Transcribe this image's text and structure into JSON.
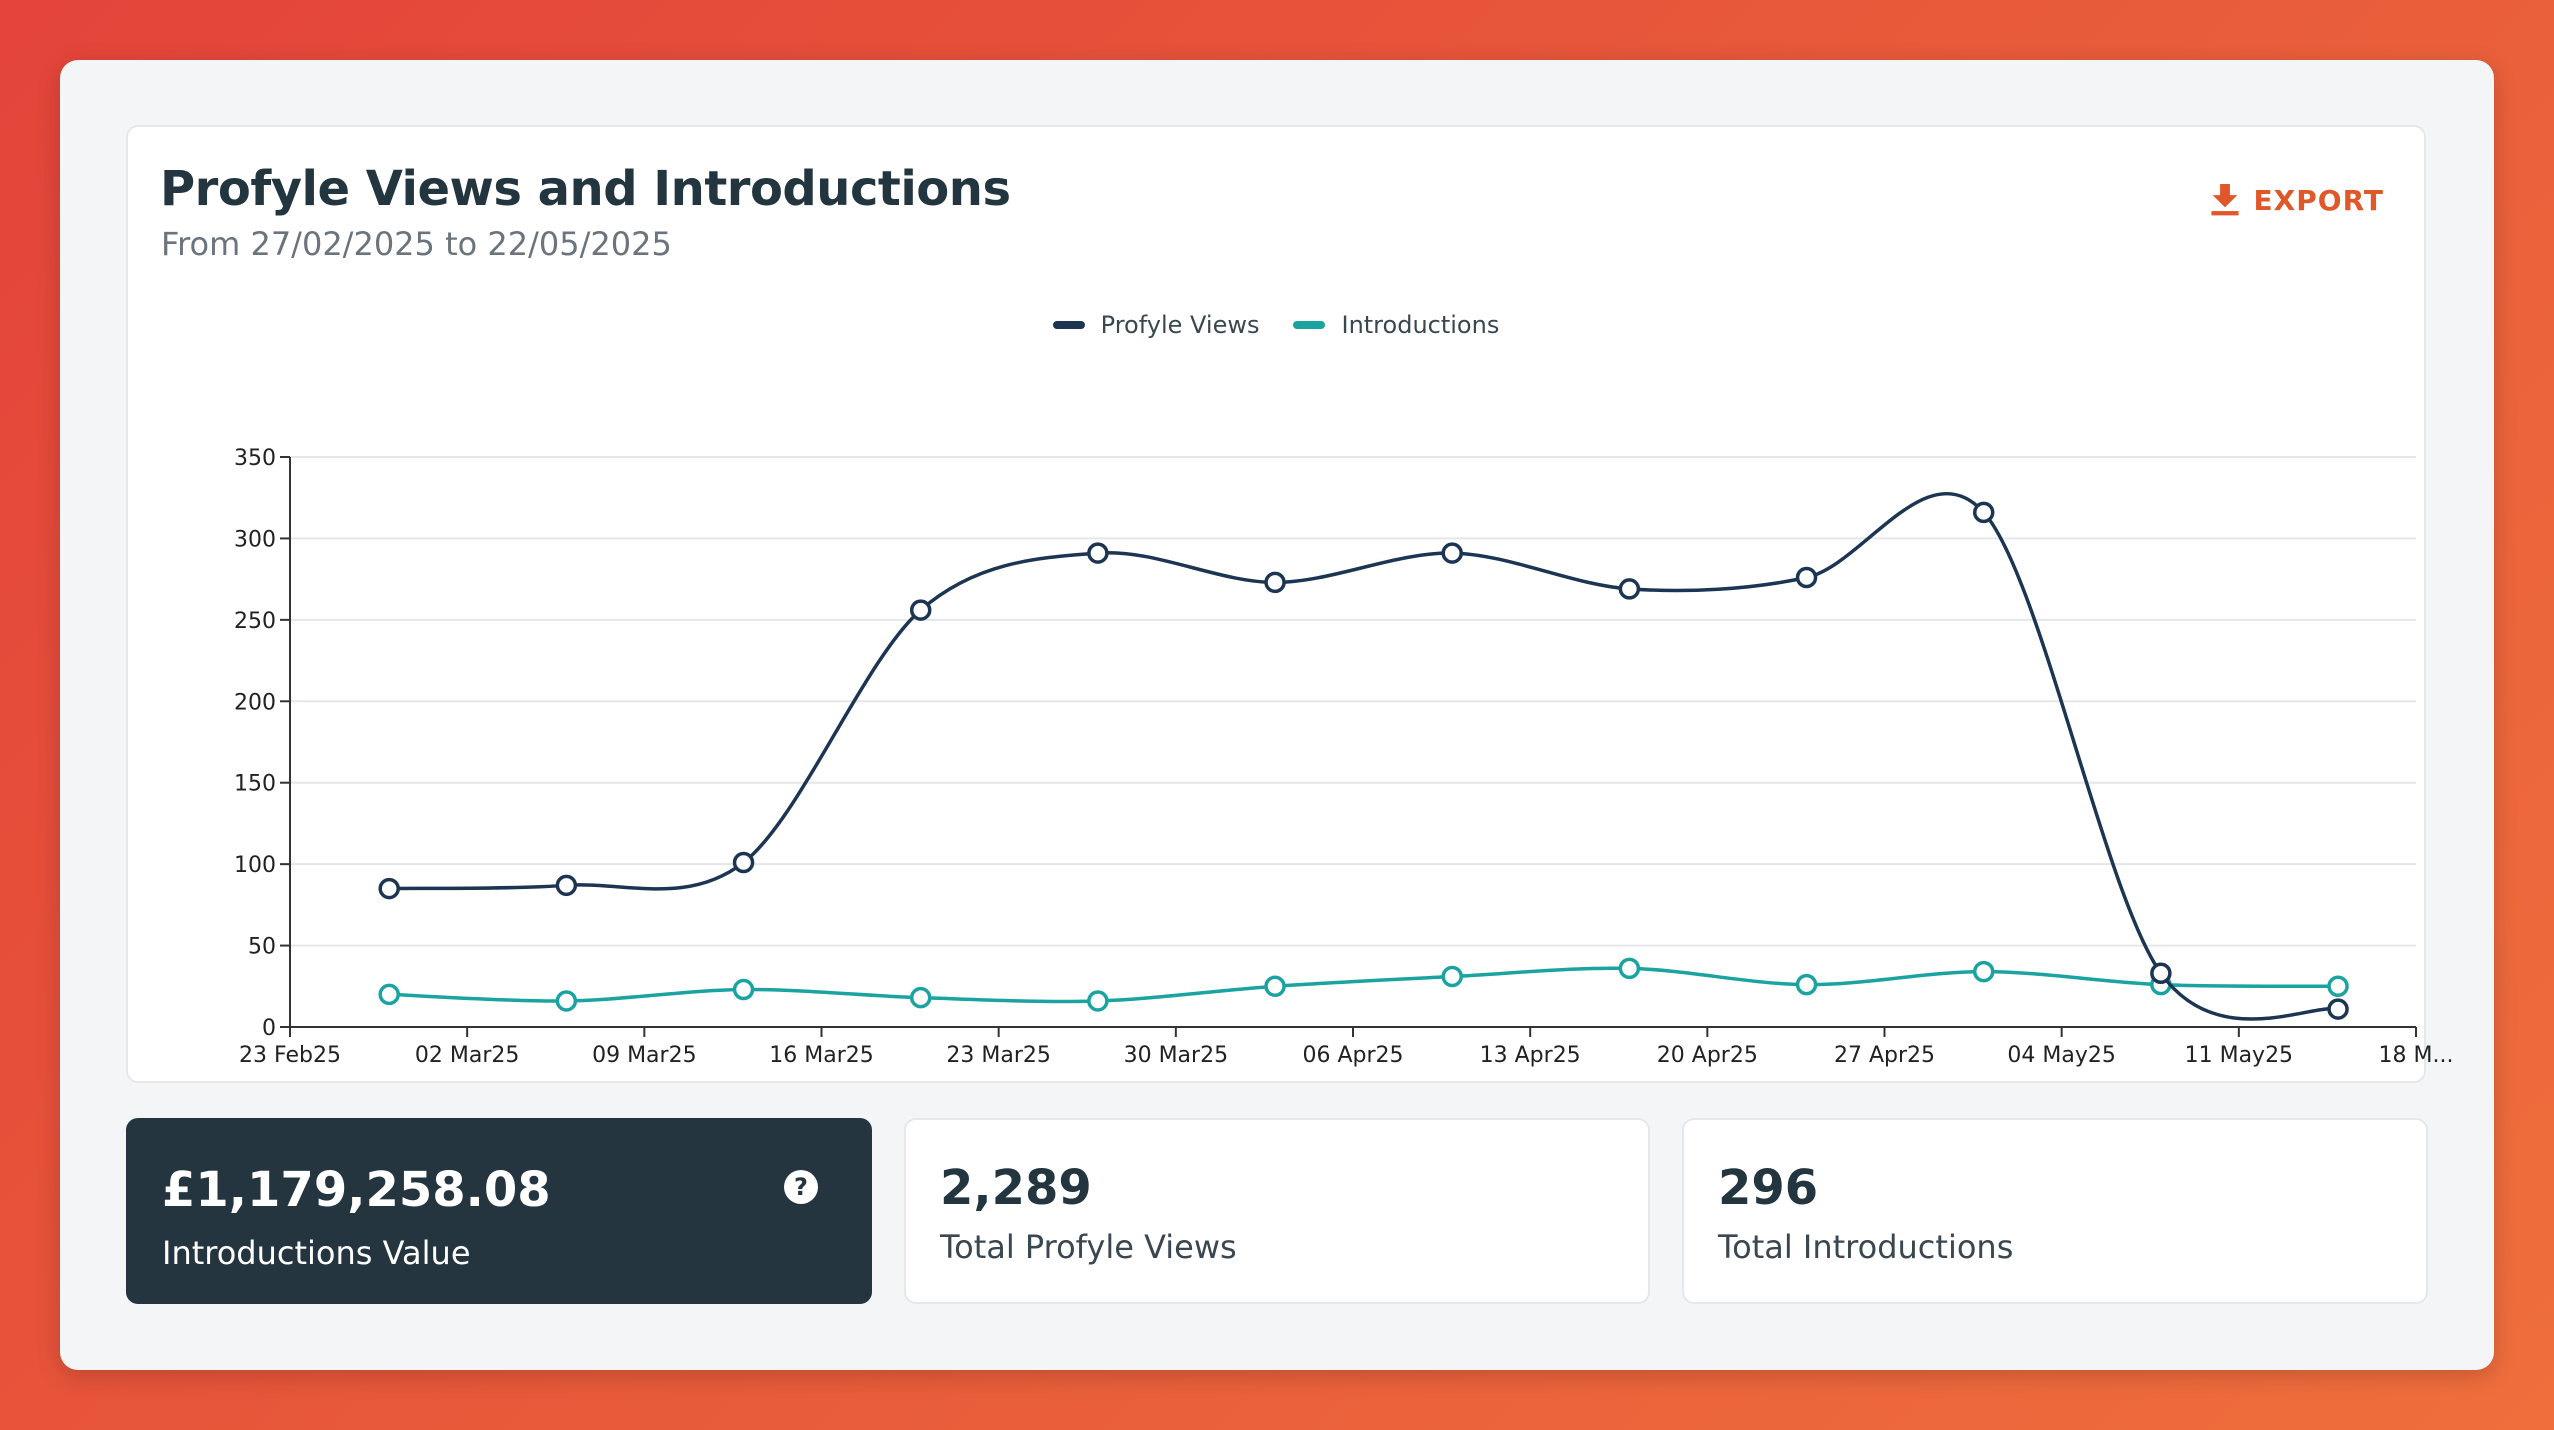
{
  "header": {
    "title": "Profyle Views and Introductions",
    "subtitle": "From 27/02/2025 to 22/05/2025",
    "export_label": "EXPORT"
  },
  "colors": {
    "views": "#1c3553",
    "introductions": "#1aa3a0",
    "accent": "#e0582a"
  },
  "chart_data": {
    "type": "line",
    "legend": [
      "Profyle Views",
      "Introductions"
    ],
    "legend_position": "top-center",
    "grid": true,
    "ylim": [
      0,
      350
    ],
    "yticks": [
      0,
      50,
      100,
      150,
      200,
      250,
      300,
      350
    ],
    "xticks": [
      "23 Feb25",
      "02 Mar25",
      "09 Mar25",
      "16 Mar25",
      "23 Mar25",
      "30 Mar25",
      "06 Apr25",
      "13 Apr25",
      "20 Apr25",
      "27 Apr25",
      "04 May25",
      "11 May25",
      "18 M..."
    ],
    "series": [
      {
        "name": "Profyle Views",
        "values": [
          85,
          87,
          101,
          256,
          291,
          273,
          291,
          269,
          276,
          316,
          33,
          11
        ]
      },
      {
        "name": "Introductions",
        "values": [
          20,
          16,
          23,
          18,
          16,
          25,
          31,
          36,
          26,
          34,
          26,
          25
        ]
      }
    ]
  },
  "stats": [
    {
      "value": "£1,179,258.08",
      "label": "Introductions Value"
    },
    {
      "value": "2,289",
      "label": "Total Profyle Views"
    },
    {
      "value": "296",
      "label": "Total Introductions"
    }
  ]
}
